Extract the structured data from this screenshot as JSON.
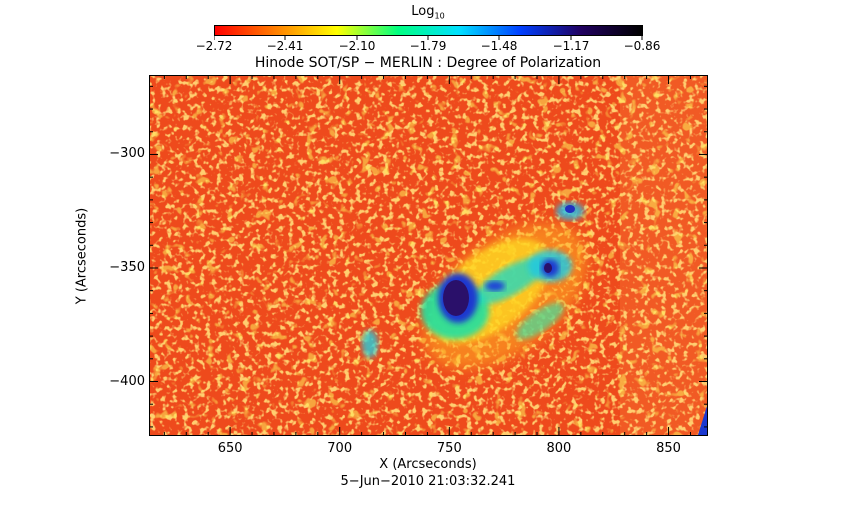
{
  "colorbar": {
    "title": "Log",
    "title_sub": "10",
    "tick_labels": [
      "−2.72",
      "−2.41",
      "−2.10",
      "−1.79",
      "−1.48",
      "−1.17",
      "−0.86"
    ],
    "range": [
      -2.72,
      -0.86
    ],
    "colors": [
      "#ff0000",
      "#ff8000",
      "#ffff00",
      "#00ff80",
      "#00e0ff",
      "#0040ff",
      "#200060",
      "#000000"
    ]
  },
  "title": "Hinode SOT/SP − MERLIN : Degree of Polarization",
  "xlabel": "X (Arcseconds)",
  "ylabel": "Y (Arcseconds)",
  "timestamp": "5−Jun−2010 21:03:32.241",
  "x_ticks": [
    "650",
    "700",
    "750",
    "800",
    "850"
  ],
  "y_ticks": [
    "−300",
    "−350",
    "−400"
  ],
  "axes": {
    "xlim": [
      613,
      868
    ],
    "ylim": [
      -424,
      -265
    ],
    "x_tick_values": [
      650,
      700,
      750,
      800,
      850
    ],
    "y_tick_values": [
      -300,
      -350,
      -400
    ]
  },
  "image": {
    "description_colors": {
      "background": "#f04a1a",
      "speckle": "#ff9a2a",
      "active_region": "#ffd21e",
      "strong": "#1a3cc8",
      "core": "#2a106a"
    }
  }
}
